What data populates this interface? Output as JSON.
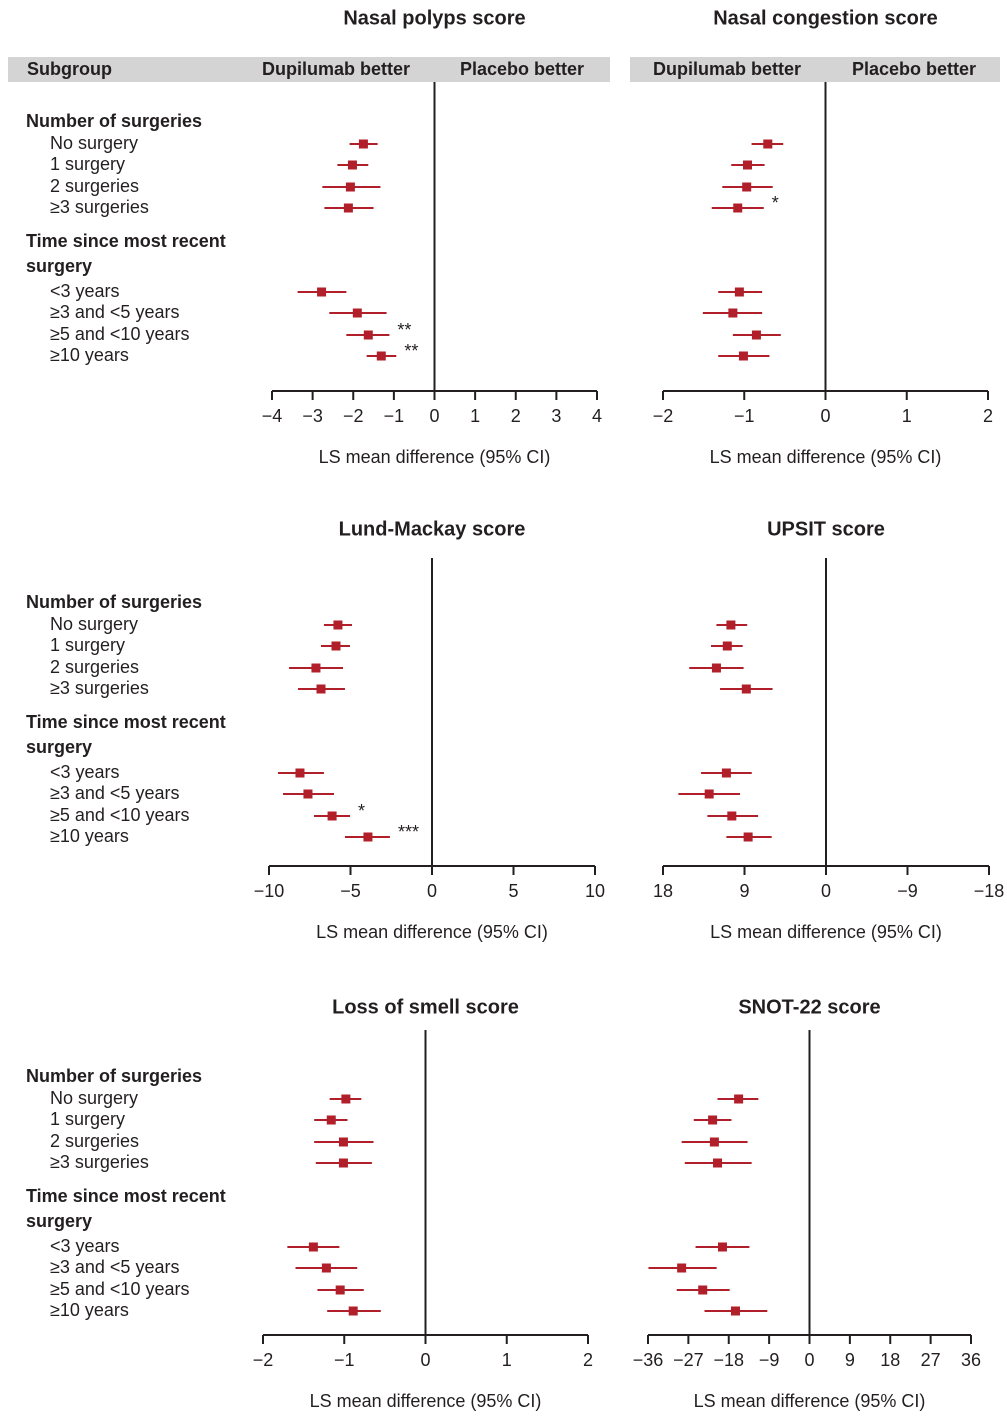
{
  "header": {
    "subgroup": "Subgroup",
    "left_label": "Dupilumab better",
    "right_label": "Placebo better"
  },
  "subgroups": [
    {
      "title": "Number of surgeries",
      "items": [
        "No surgery",
        "1 surgery",
        "2 surgeries",
        "≥3 surgeries"
      ]
    },
    {
      "title": "Time since most recent surgery",
      "items": [
        "<3 years",
        "≥3 and <5 years",
        "≥5 and <10 years",
        "≥10 years"
      ]
    }
  ],
  "chart_data": [
    {
      "type": "forest",
      "title": "Nasal polyps score",
      "xlabel": "LS mean difference (95% CI)",
      "color": "#b01f2a",
      "values": [
        -1.75,
        -2.02,
        -2.07,
        -2.12,
        -2.78,
        -1.9,
        -1.63,
        -1.31
      ],
      "lower": [
        -2.09,
        -2.39,
        -2.76,
        -2.71,
        -3.37,
        -2.59,
        -2.17,
        -1.67
      ],
      "upper": [
        -1.4,
        -1.63,
        -1.33,
        -1.5,
        -2.17,
        -1.18,
        -1.11,
        -0.94
      ],
      "significance": [
        null,
        null,
        null,
        null,
        null,
        null,
        "**",
        "**"
      ],
      "xlim": [
        -4,
        4
      ],
      "xticks": [
        {
          "value": -4,
          "label": "−4"
        },
        {
          "value": -3,
          "label": "−3"
        },
        {
          "value": -2,
          "label": "−2"
        },
        {
          "value": -1,
          "label": "−1"
        },
        0,
        1,
        2,
        3,
        4
      ]
    },
    {
      "type": "forest",
      "title": "Nasal congestion score",
      "xlabel": "LS mean difference (95% CI)",
      "color": "#b01f2a",
      "values": [
        -0.71,
        -0.96,
        -0.97,
        -1.08,
        -1.06,
        -1.14,
        -0.85,
        -1.01
      ],
      "lower": [
        -0.91,
        -1.16,
        -1.27,
        -1.4,
        -1.32,
        -1.51,
        -1.14,
        -1.32
      ],
      "upper": [
        -0.52,
        -0.75,
        -0.65,
        -0.76,
        -0.78,
        -0.78,
        -0.55,
        -0.69
      ],
      "significance": [
        null,
        null,
        null,
        "*",
        null,
        null,
        null,
        null
      ],
      "xlim": [
        -2,
        2
      ],
      "xticks": [
        {
          "value": -2,
          "label": "−2"
        },
        {
          "value": -1,
          "label": "−1"
        },
        0,
        1,
        2
      ]
    },
    {
      "type": "forest",
      "title": "Lund-Mackay score",
      "xlabel": "LS mean difference (95% CI)",
      "color": "#b01f2a",
      "values": [
        -5.77,
        -5.89,
        -7.12,
        -6.81,
        -8.1,
        -7.61,
        -6.13,
        -3.93
      ],
      "lower": [
        -6.63,
        -6.81,
        -8.77,
        -8.22,
        -9.45,
        -9.14,
        -7.24,
        -5.34
      ],
      "upper": [
        -4.91,
        -5.03,
        -5.46,
        -5.34,
        -6.63,
        -6.01,
        -5.03,
        -2.58
      ],
      "significance": [
        null,
        null,
        null,
        null,
        null,
        null,
        "*",
        "***"
      ],
      "xlim": [
        -10,
        10
      ],
      "xticks": [
        {
          "value": -10,
          "label": "−10"
        },
        {
          "value": -5,
          "label": "−5"
        },
        0,
        5,
        10
      ]
    },
    {
      "type": "forest",
      "title": "UPSIT score",
      "xlabel": "LS mean difference (95% CI)",
      "color": "#b01f2a",
      "values": [
        10.5,
        10.9,
        12.1,
        8.8,
        11.0,
        12.9,
        10.4,
        8.6
      ],
      "lower": [
        8.7,
        9.2,
        9.1,
        5.9,
        8.2,
        9.5,
        7.5,
        6.0
      ],
      "upper": [
        12.1,
        12.7,
        15.1,
        11.7,
        13.8,
        16.3,
        13.1,
        11.0
      ],
      "significance": [
        null,
        null,
        null,
        null,
        null,
        null,
        null,
        null
      ],
      "xlim": [
        18,
        -18
      ],
      "xticks": [
        18,
        9,
        0,
        {
          "value": -9,
          "label": "−9"
        },
        {
          "value": -18,
          "label": "−18"
        }
      ]
    },
    {
      "type": "forest",
      "title": "Loss of smell score",
      "xlabel": "LS mean difference (95% CI)",
      "color": "#b01f2a",
      "values": [
        -0.98,
        -1.16,
        -1.01,
        -1.01,
        -1.38,
        -1.22,
        -1.05,
        -0.89
      ],
      "lower": [
        -1.18,
        -1.37,
        -1.37,
        -1.35,
        -1.7,
        -1.6,
        -1.33,
        -1.21
      ],
      "upper": [
        -0.79,
        -0.96,
        -0.64,
        -0.66,
        -1.06,
        -0.84,
        -0.76,
        -0.55
      ],
      "significance": [
        null,
        null,
        null,
        null,
        null,
        null,
        null,
        null
      ],
      "xlim": [
        -2,
        2
      ],
      "xticks": [
        {
          "value": -2,
          "label": "−2"
        },
        {
          "value": -1,
          "label": "−1"
        },
        0,
        1,
        2
      ]
    },
    {
      "type": "forest",
      "title": "SNOT-22 score",
      "xlabel": "LS mean difference (95% CI)",
      "color": "#b01f2a",
      "values": [
        -15.8,
        -21.6,
        -21.2,
        -20.5,
        -19.4,
        -28.5,
        -23.8,
        -16.5
      ],
      "lower": [
        -20.5,
        -25.8,
        -28.5,
        -27.8,
        -25.4,
        -35.9,
        -29.6,
        -23.4
      ],
      "upper": [
        -11.4,
        -17.4,
        -13.8,
        -12.9,
        -13.4,
        -20.7,
        -17.8,
        -9.4
      ],
      "significance": [
        null,
        null,
        null,
        null,
        null,
        null,
        null,
        null
      ],
      "xlim": [
        -36,
        36
      ],
      "xticks": [
        {
          "value": -36,
          "label": "−36"
        },
        {
          "value": -27,
          "label": "−27"
        },
        {
          "value": -18,
          "label": "−18"
        },
        {
          "value": -9,
          "label": "−9"
        },
        0,
        9,
        18,
        27,
        36
      ]
    }
  ]
}
